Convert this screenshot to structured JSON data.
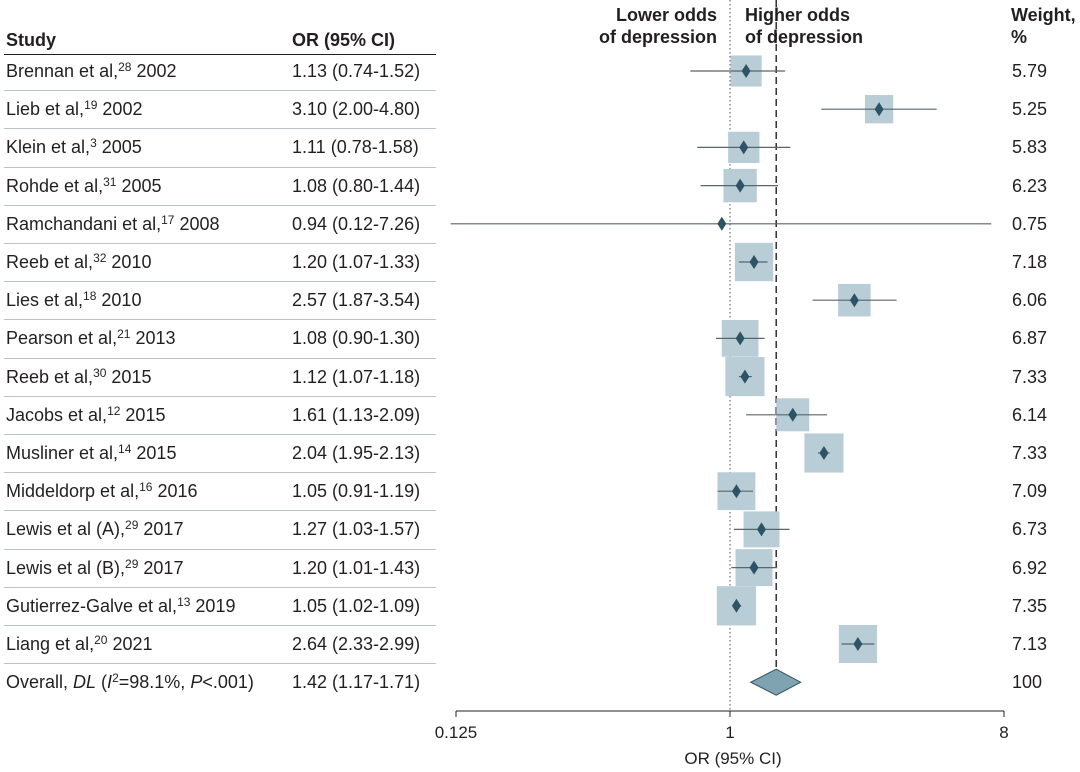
{
  "headers": {
    "study": "Study",
    "or": "OR (95% CI)",
    "lower": [
      "Lower odds",
      "of depression"
    ],
    "higher": [
      "Higher odds",
      "of depression"
    ],
    "weight": [
      "Weight,",
      "%"
    ]
  },
  "rows": [
    {
      "author": "Brennan et al,",
      "ref": "28",
      "year": "2002",
      "or": "1.13 (0.74-1.52)",
      "weight": "5.79"
    },
    {
      "author": "Lieb et al,",
      "ref": "19",
      "year": "2002",
      "or": "3.10 (2.00-4.80)",
      "weight": "5.25"
    },
    {
      "author": "Klein et al,",
      "ref": "3",
      "year": "2005",
      "or": "1.11 (0.78-1.58)",
      "weight": "5.83"
    },
    {
      "author": "Rohde et al,",
      "ref": "31",
      "year": "2005",
      "or": "1.08 (0.80-1.44)",
      "weight": "6.23"
    },
    {
      "author": "Ramchandani et al,",
      "ref": "17",
      "year": "2008",
      "or": "0.94 (0.12-7.26)",
      "weight": "0.75"
    },
    {
      "author": "Reeb et al,",
      "ref": "32",
      "year": "2010",
      "or": "1.20 (1.07-1.33)",
      "weight": "7.18"
    },
    {
      "author": "Lies et al,",
      "ref": "18",
      "year": "2010",
      "or": "2.57 (1.87-3.54)",
      "weight": "6.06"
    },
    {
      "author": "Pearson et al,",
      "ref": "21",
      "year": "2013",
      "or": "1.08 (0.90-1.30)",
      "weight": "6.87"
    },
    {
      "author": "Reeb et al,",
      "ref": "30",
      "year": "2015",
      "or": "1.12 (1.07-1.18)",
      "weight": "7.33"
    },
    {
      "author": "Jacobs et al,",
      "ref": "12",
      "year": "2015",
      "or": "1.61 (1.13-2.09)",
      "weight": "6.14"
    },
    {
      "author": "Musliner et al,",
      "ref": "14",
      "year": "2015",
      "or": "2.04 (1.95-2.13)",
      "weight": "7.33"
    },
    {
      "author": "Middeldorp et al,",
      "ref": "16",
      "year": "2016",
      "or": "1.05 (0.91-1.19)",
      "weight": "7.09"
    },
    {
      "author": "Lewis et al (A),",
      "ref": "29",
      "year": "2017",
      "or": "1.27 (1.03-1.57)",
      "weight": "6.73"
    },
    {
      "author": "Lewis et al (B),",
      "ref": "29",
      "year": "2017",
      "or": "1.20 (1.01-1.43)",
      "weight": "6.92"
    },
    {
      "author": "Gutierrez-Galve et al,",
      "ref": "13",
      "year": "2019",
      "or": "1.05 (1.02-1.09)",
      "weight": "7.35"
    },
    {
      "author": "Liang et al,",
      "ref": "20",
      "year": "2021",
      "or": "2.64 (2.33-2.99)",
      "weight": "7.13"
    }
  ],
  "overall": {
    "prefix": "Overall,",
    "method": "DL",
    "i2_label": "I",
    "i2_sup": "2",
    "i2_value": "=98.1%,",
    "p_label": "P",
    "p_value": "<.001)",
    "or": "1.42 (1.17-1.71)",
    "weight": "100"
  },
  "chart_data": {
    "type": "forest",
    "scale": "log",
    "xlim": [
      0.125,
      8
    ],
    "xticks": [
      "0.125",
      "1",
      "8"
    ],
    "xlabel": "OR (95% CI)",
    "reference_line": 1,
    "overall_line": 1.42,
    "colors": {
      "box": "#b9cdd6",
      "diamond": "#2c5366",
      "line": "#58656b",
      "overall": "#7fa3b1",
      "axis": "#231f20"
    },
    "studies": [
      {
        "or": 1.13,
        "lo": 0.74,
        "hi": 1.52,
        "weight": 5.79
      },
      {
        "or": 3.1,
        "lo": 2.0,
        "hi": 4.8,
        "weight": 5.25
      },
      {
        "or": 1.11,
        "lo": 0.78,
        "hi": 1.58,
        "weight": 5.83
      },
      {
        "or": 1.08,
        "lo": 0.8,
        "hi": 1.44,
        "weight": 6.23
      },
      {
        "or": 0.94,
        "lo": 0.12,
        "hi": 7.26,
        "weight": 0.75
      },
      {
        "or": 1.2,
        "lo": 1.07,
        "hi": 1.33,
        "weight": 7.18
      },
      {
        "or": 2.57,
        "lo": 1.87,
        "hi": 3.54,
        "weight": 6.06
      },
      {
        "or": 1.08,
        "lo": 0.9,
        "hi": 1.3,
        "weight": 6.87
      },
      {
        "or": 1.12,
        "lo": 1.07,
        "hi": 1.18,
        "weight": 7.33
      },
      {
        "or": 1.61,
        "lo": 1.13,
        "hi": 2.09,
        "weight": 6.14
      },
      {
        "or": 2.04,
        "lo": 1.95,
        "hi": 2.13,
        "weight": 7.33
      },
      {
        "or": 1.05,
        "lo": 0.91,
        "hi": 1.19,
        "weight": 7.09
      },
      {
        "or": 1.27,
        "lo": 1.03,
        "hi": 1.57,
        "weight": 6.73
      },
      {
        "or": 1.2,
        "lo": 1.01,
        "hi": 1.43,
        "weight": 6.92
      },
      {
        "or": 1.05,
        "lo": 1.02,
        "hi": 1.09,
        "weight": 7.35
      },
      {
        "or": 2.64,
        "lo": 2.33,
        "hi": 2.99,
        "weight": 7.13
      }
    ],
    "overall": {
      "or": 1.42,
      "lo": 1.17,
      "hi": 1.71,
      "weight": 100
    }
  }
}
